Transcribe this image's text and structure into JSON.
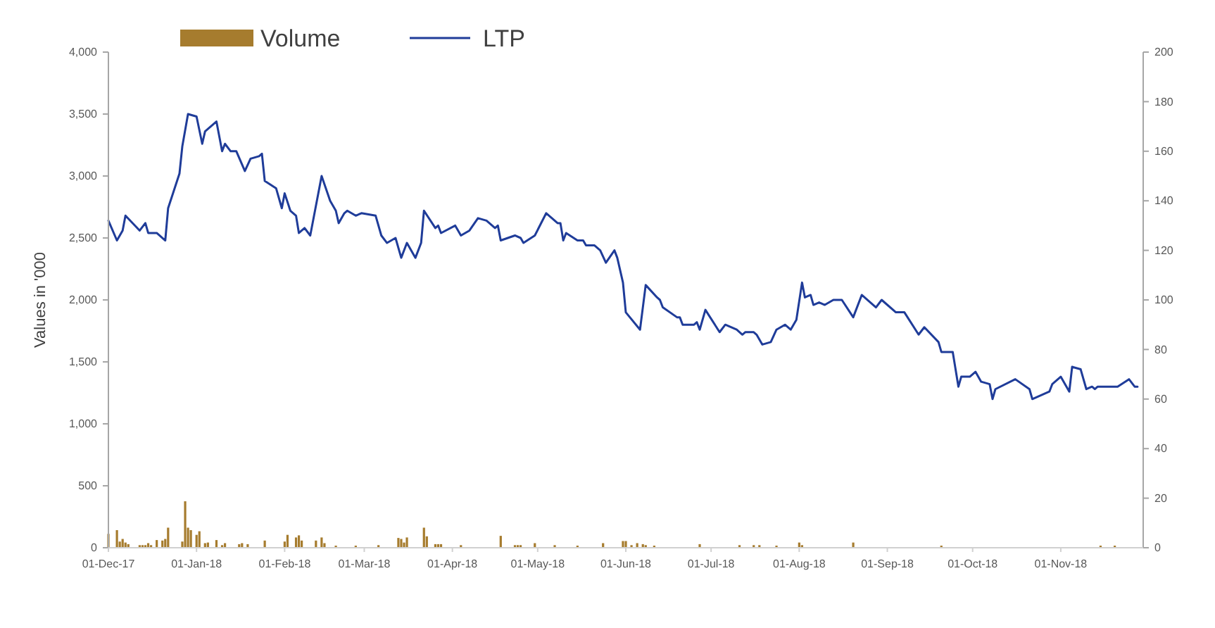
{
  "chart_data": {
    "type": "bar",
    "ylabel": "Values in '000",
    "legend": "top",
    "xlim": [
      "2017-12-01",
      "2018-11-30"
    ],
    "xticks": [
      {
        "value": "2017-12-01",
        "label": "01-Dec-17"
      },
      {
        "value": "2018-01-01",
        "label": "01-Jan-18"
      },
      {
        "value": "2018-02-01",
        "label": "01-Feb-18"
      },
      {
        "value": "2018-03-01",
        "label": "01-Mar-18"
      },
      {
        "value": "2018-04-01",
        "label": "01-Apr-18"
      },
      {
        "value": "2018-05-01",
        "label": "01-May-18"
      },
      {
        "value": "2018-06-01",
        "label": "01-Jun-18"
      },
      {
        "value": "2018-07-01",
        "label": "01-Jul-18"
      },
      {
        "value": "2018-08-01",
        "label": "01-Aug-18"
      },
      {
        "value": "2018-09-01",
        "label": "01-Sep-18"
      },
      {
        "value": "2018-10-01",
        "label": "01-Oct-18"
      },
      {
        "value": "2018-11-01",
        "label": "01-Nov-18"
      }
    ],
    "ylim": [
      0,
      4000
    ],
    "yticks": [
      0,
      500,
      {
        "value": 1000,
        "label": "1,000"
      },
      {
        "value": 1500,
        "label": "1,500"
      },
      {
        "value": 2000,
        "label": "2,000"
      },
      {
        "value": 2500,
        "label": "2,500"
      },
      {
        "value": 3000,
        "label": "3,000"
      },
      {
        "value": 3500,
        "label": "3,500"
      },
      {
        "value": 4000,
        "label": "4,000"
      }
    ],
    "y2lim": [
      0,
      200
    ],
    "y2ticks": [
      0,
      20,
      40,
      60,
      80,
      100,
      120,
      140,
      160,
      180,
      200
    ],
    "series": [
      {
        "name": "Volume",
        "color": "#a67c2e",
        "x": [
          "2017-12-01",
          "2017-12-04",
          "2017-12-05",
          "2017-12-06",
          "2017-12-07",
          "2017-12-08",
          "2017-12-12",
          "2017-12-13",
          "2017-12-14",
          "2017-12-15",
          "2017-12-16",
          "2017-12-18",
          "2017-12-20",
          "2017-12-21",
          "2017-12-22",
          "2017-12-27",
          "2017-12-28",
          "2017-12-29",
          "2017-12-30",
          "2018-01-01",
          "2018-01-02",
          "2018-01-04",
          "2018-01-05",
          "2018-01-08",
          "2018-01-10",
          "2018-01-11",
          "2018-01-16",
          "2018-01-17",
          "2018-01-19",
          "2018-01-25",
          "2018-02-01",
          "2018-02-02",
          "2018-02-05",
          "2018-02-06",
          "2018-02-07",
          "2018-02-12",
          "2018-02-14",
          "2018-02-15",
          "2018-02-19",
          "2018-02-26",
          "2018-03-06",
          "2018-03-13",
          "2018-03-14",
          "2018-03-15",
          "2018-03-16",
          "2018-03-22",
          "2018-03-23",
          "2018-03-26",
          "2018-03-27",
          "2018-03-28",
          "2018-04-04",
          "2018-04-18",
          "2018-04-23",
          "2018-04-24",
          "2018-04-25",
          "2018-04-30",
          "2018-05-07",
          "2018-05-15",
          "2018-05-24",
          "2018-05-31",
          "2018-06-01",
          "2018-06-03",
          "2018-06-05",
          "2018-06-07",
          "2018-06-08",
          "2018-06-11",
          "2018-06-27",
          "2018-07-11",
          "2018-07-16",
          "2018-07-18",
          "2018-07-24",
          "2018-08-01",
          "2018-08-02",
          "2018-08-20",
          "2018-09-20",
          "2018-11-15",
          "2018-11-20"
        ],
        "values": [
          112,
          142,
          50,
          71,
          42,
          29,
          21,
          21,
          21,
          37,
          21,
          62,
          58,
          71,
          162,
          50,
          375,
          162,
          142,
          104,
          133,
          37,
          42,
          62,
          21,
          37,
          29,
          37,
          29,
          58,
          50,
          104,
          83,
          100,
          58,
          58,
          83,
          37,
          17,
          17,
          21,
          79,
          71,
          42,
          83,
          162,
          92,
          29,
          29,
          29,
          21,
          96,
          21,
          21,
          21,
          37,
          21,
          17,
          37,
          54,
          54,
          21,
          37,
          29,
          21,
          17,
          29,
          21,
          21,
          21,
          17,
          42,
          21,
          42,
          17,
          17,
          17
        ]
      },
      {
        "name": "LTP",
        "type": "line",
        "axis": "y2",
        "color": "#1f3c99",
        "x": [
          "2017-12-01",
          "2017-12-04",
          "2017-12-06",
          "2017-12-07",
          "2017-12-12",
          "2017-12-14",
          "2017-12-15",
          "2017-12-18",
          "2017-12-21",
          "2017-12-22",
          "2017-12-26",
          "2017-12-27",
          "2017-12-29",
          "2018-01-01",
          "2018-01-03",
          "2018-01-04",
          "2018-01-08",
          "2018-01-10",
          "2018-01-11",
          "2018-01-13",
          "2018-01-15",
          "2018-01-18",
          "2018-01-20",
          "2018-01-23",
          "2018-01-24",
          "2018-01-25",
          "2018-01-29",
          "2018-01-31",
          "2018-02-01",
          "2018-02-03",
          "2018-02-05",
          "2018-02-06",
          "2018-02-08",
          "2018-02-10",
          "2018-02-14",
          "2018-02-17",
          "2018-02-19",
          "2018-02-20",
          "2018-02-22",
          "2018-02-23",
          "2018-02-26",
          "2018-02-28",
          "2018-03-05",
          "2018-03-07",
          "2018-03-09",
          "2018-03-12",
          "2018-03-14",
          "2018-03-16",
          "2018-03-19",
          "2018-03-21",
          "2018-03-22",
          "2018-03-26",
          "2018-03-27",
          "2018-03-28",
          "2018-04-02",
          "2018-04-04",
          "2018-04-07",
          "2018-04-10",
          "2018-04-13",
          "2018-04-16",
          "2018-04-17",
          "2018-04-18",
          "2018-04-23",
          "2018-04-25",
          "2018-04-26",
          "2018-04-30",
          "2018-05-04",
          "2018-05-08",
          "2018-05-09",
          "2018-05-10",
          "2018-05-11",
          "2018-05-15",
          "2018-05-17",
          "2018-05-18",
          "2018-05-21",
          "2018-05-23",
          "2018-05-25",
          "2018-05-28",
          "2018-05-29",
          "2018-05-31",
          "2018-06-01",
          "2018-06-06",
          "2018-06-08",
          "2018-06-12",
          "2018-06-13",
          "2018-06-14",
          "2018-06-19",
          "2018-06-20",
          "2018-06-21",
          "2018-06-25",
          "2018-06-26",
          "2018-06-27",
          "2018-06-29",
          "2018-07-04",
          "2018-07-06",
          "2018-07-10",
          "2018-07-12",
          "2018-07-13",
          "2018-07-16",
          "2018-07-17",
          "2018-07-19",
          "2018-07-22",
          "2018-07-24",
          "2018-07-27",
          "2018-07-29",
          "2018-07-31",
          "2018-08-02",
          "2018-08-03",
          "2018-08-05",
          "2018-08-06",
          "2018-08-08",
          "2018-08-10",
          "2018-08-13",
          "2018-08-16",
          "2018-08-20",
          "2018-08-23",
          "2018-08-28",
          "2018-08-30",
          "2018-09-04",
          "2018-09-07",
          "2018-09-12",
          "2018-09-14",
          "2018-09-19",
          "2018-09-20",
          "2018-09-24",
          "2018-09-26",
          "2018-09-27",
          "2018-09-30",
          "2018-10-02",
          "2018-10-04",
          "2018-10-07",
          "2018-10-08",
          "2018-10-09",
          "2018-10-16",
          "2018-10-21",
          "2018-10-22",
          "2018-10-28",
          "2018-10-29",
          "2018-11-01",
          "2018-11-04",
          "2018-11-05",
          "2018-11-08",
          "2018-11-10",
          "2018-11-12",
          "2018-11-13",
          "2018-11-14",
          "2018-11-21",
          "2018-11-25",
          "2018-11-27",
          "2018-11-28"
        ],
        "values": [
          132,
          124,
          128,
          134,
          128,
          131,
          127,
          127,
          124,
          137,
          151,
          162,
          175,
          174,
          163,
          168,
          172,
          160,
          163,
          160,
          160,
          152,
          157,
          158,
          159,
          148,
          145,
          137,
          143,
          136,
          134,
          127,
          129,
          126,
          150,
          140,
          136,
          131,
          135,
          136,
          134,
          135,
          134,
          126,
          123,
          125,
          117,
          123,
          117,
          123,
          136,
          129,
          130,
          127,
          130,
          126,
          128,
          133,
          132,
          129,
          130,
          124,
          126,
          125,
          123,
          126,
          135,
          131,
          131,
          124,
          127,
          124,
          124,
          122,
          122,
          120,
          115,
          120,
          117,
          107,
          95,
          88,
          106,
          101,
          100,
          97,
          93,
          93,
          90,
          90,
          91,
          88,
          96,
          87,
          90,
          88,
          86,
          87,
          87,
          86,
          82,
          83,
          88,
          90,
          88,
          92,
          107,
          101,
          102,
          98,
          99,
          98,
          100,
          100,
          93,
          102,
          97,
          100,
          95,
          95,
          86,
          89,
          83,
          79,
          79,
          65,
          69,
          69,
          71,
          67,
          66,
          60,
          64,
          68,
          64,
          60,
          63,
          66,
          69,
          63,
          73,
          72,
          64,
          65,
          64,
          65,
          65,
          68,
          65,
          65
        ]
      }
    ]
  }
}
